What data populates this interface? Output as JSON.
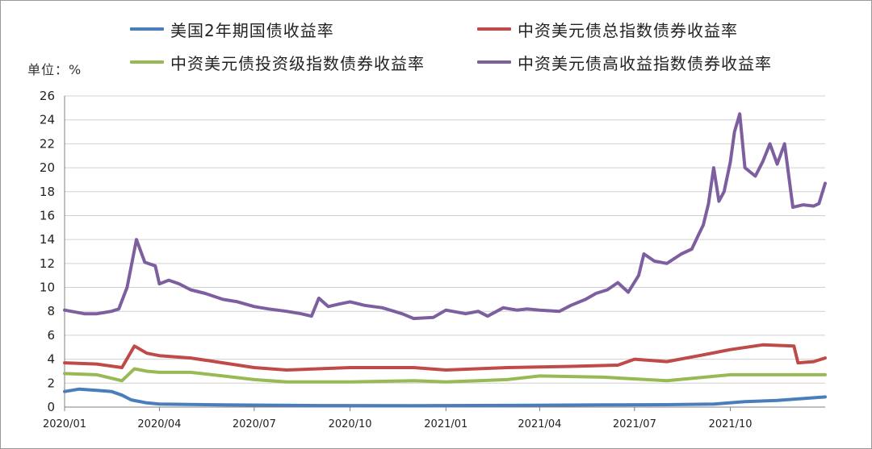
{
  "unit_label": "单位：%",
  "legend": [
    {
      "name": "美国2年期国债收益率",
      "color": "#4a7ebb"
    },
    {
      "name": "中资美元债总指数债券收益率",
      "color": "#be4b48"
    },
    {
      "name": "中资美元债投资级指数债券收益率",
      "color": "#98b954"
    },
    {
      "name": "中资美元债高收益指数债券收益率",
      "color": "#7d5fa0"
    }
  ],
  "chart_data": {
    "type": "line",
    "ylim": [
      0,
      26
    ],
    "y_ticks": [
      "0",
      "2",
      "4",
      "6",
      "8",
      "10",
      "12",
      "14",
      "16",
      "18",
      "20",
      "22",
      "24",
      "26"
    ],
    "x_ticks": [
      "2020/01",
      "2020/04",
      "2020/07",
      "2020/10",
      "2021/01",
      "2021/04",
      "2021/07",
      "2021/10"
    ],
    "x_range": [
      "2020/01/01",
      "2021/12/31"
    ],
    "grid": true,
    "series": [
      {
        "name": "美国2年期国债收益率",
        "color": "#4a7ebb",
        "x": [
          "2020/01/01",
          "2020/01/15",
          "2020/02/01",
          "2020/02/15",
          "2020/02/25",
          "2020/03/05",
          "2020/03/20",
          "2020/04/01",
          "2020/06/01",
          "2020/09/01",
          "2020/12/01",
          "2021/03/01",
          "2021/06/01",
          "2021/08/01",
          "2021/09/15",
          "2021/10/15",
          "2021/11/15",
          "2021/12/31"
        ],
        "values": [
          1.3,
          1.5,
          1.4,
          1.3,
          1.0,
          0.6,
          0.35,
          0.25,
          0.18,
          0.13,
          0.12,
          0.14,
          0.18,
          0.2,
          0.25,
          0.45,
          0.55,
          0.85
        ]
      },
      {
        "name": "中资美元债总指数债券收益率",
        "color": "#be4b48",
        "x": [
          "2020/01/01",
          "2020/02/01",
          "2020/02/25",
          "2020/03/08",
          "2020/03/20",
          "2020/04/01",
          "2020/05/01",
          "2020/06/01",
          "2020/07/01",
          "2020/08/01",
          "2020/10/01",
          "2020/12/01",
          "2021/01/01",
          "2021/03/01",
          "2021/05/01",
          "2021/06/15",
          "2021/07/01",
          "2021/08/01",
          "2021/09/01",
          "2021/10/01",
          "2021/11/01",
          "2021/12/01",
          "2021/12/05",
          "2021/12/20",
          "2021/12/31"
        ],
        "values": [
          3.7,
          3.6,
          3.3,
          5.1,
          4.5,
          4.3,
          4.1,
          3.7,
          3.3,
          3.1,
          3.3,
          3.3,
          3.1,
          3.3,
          3.4,
          3.5,
          4.0,
          3.8,
          4.3,
          4.8,
          5.2,
          5.1,
          3.7,
          3.8,
          4.1
        ]
      },
      {
        "name": "中资美元债投资级指数债券收益率",
        "color": "#98b954",
        "x": [
          "2020/01/01",
          "2020/02/01",
          "2020/02/25",
          "2020/03/08",
          "2020/03/20",
          "2020/04/01",
          "2020/05/01",
          "2020/06/01",
          "2020/07/01",
          "2020/08/01",
          "2020/10/01",
          "2020/12/01",
          "2021/01/01",
          "2021/03/01",
          "2021/04/01",
          "2021/06/01",
          "2021/08/01",
          "2021/10/01",
          "2021/12/31"
        ],
        "values": [
          2.8,
          2.7,
          2.2,
          3.2,
          3.0,
          2.9,
          2.9,
          2.6,
          2.3,
          2.1,
          2.1,
          2.2,
          2.1,
          2.3,
          2.6,
          2.5,
          2.2,
          2.7,
          2.7
        ]
      },
      {
        "name": "中资美元债高收益指数债券收益率",
        "color": "#7d5fa0",
        "x": [
          "2020/01/01",
          "2020/01/20",
          "2020/02/01",
          "2020/02/15",
          "2020/02/22",
          "2020/03/01",
          "2020/03/10",
          "2020/03/18",
          "2020/03/28",
          "2020/04/01",
          "2020/04/10",
          "2020/04/20",
          "2020/05/01",
          "2020/05/15",
          "2020/06/01",
          "2020/06/15",
          "2020/07/01",
          "2020/07/15",
          "2020/08/01",
          "2020/08/15",
          "2020/08/25",
          "2020/09/01",
          "2020/09/10",
          "2020/09/20",
          "2020/10/01",
          "2020/10/15",
          "2020/11/01",
          "2020/11/20",
          "2020/12/01",
          "2020/12/20",
          "2021/01/01",
          "2021/01/20",
          "2021/02/01",
          "2021/02/10",
          "2021/02/25",
          "2021/03/10",
          "2021/03/20",
          "2021/04/01",
          "2021/04/20",
          "2021/05/01",
          "2021/05/15",
          "2021/05/25",
          "2021/06/05",
          "2021/06/15",
          "2021/06/25",
          "2021/07/05",
          "2021/07/10",
          "2021/07/20",
          "2021/08/01",
          "2021/08/15",
          "2021/08/25",
          "2021/09/01",
          "2021/09/05",
          "2021/09/10",
          "2021/09/15",
          "2021/09/20",
          "2021/09/25",
          "2021/10/01",
          "2021/10/05",
          "2021/10/10",
          "2021/10/15",
          "2021/10/25",
          "2021/11/01",
          "2021/11/08",
          "2021/11/15",
          "2021/11/22",
          "2021/11/30",
          "2021/12/05",
          "2021/12/10",
          "2021/12/20",
          "2021/12/25",
          "2021/12/31"
        ],
        "values": [
          8.1,
          7.8,
          7.8,
          8.0,
          8.2,
          10.0,
          14.0,
          12.1,
          11.8,
          10.3,
          10.6,
          10.3,
          9.8,
          9.5,
          9.0,
          8.8,
          8.4,
          8.2,
          8.0,
          7.8,
          7.6,
          9.1,
          8.4,
          8.6,
          8.8,
          8.5,
          8.3,
          7.8,
          7.4,
          7.5,
          8.1,
          7.8,
          8.0,
          7.6,
          8.3,
          8.1,
          8.2,
          8.1,
          8.0,
          8.5,
          9.0,
          9.5,
          9.8,
          10.4,
          9.6,
          11.0,
          12.8,
          12.2,
          12.0,
          12.8,
          13.2,
          14.5,
          15.2,
          17.0,
          20.0,
          17.2,
          18.0,
          20.5,
          23.0,
          24.5,
          20.0,
          19.3,
          20.5,
          22.0,
          20.3,
          22.0,
          16.7,
          16.8,
          16.9,
          16.8,
          17.0,
          18.7
        ]
      }
    ]
  }
}
